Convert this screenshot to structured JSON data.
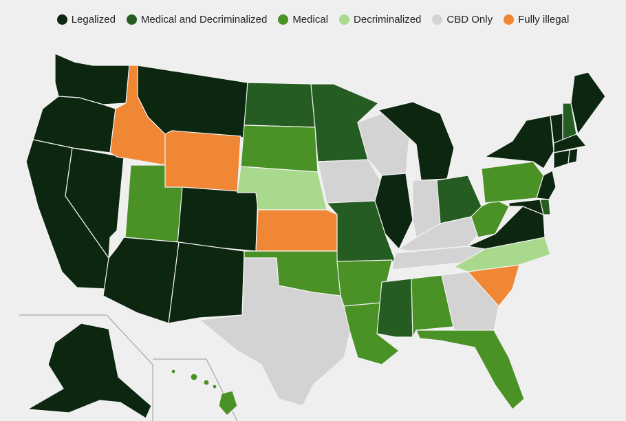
{
  "legend": [
    {
      "key": "legalized",
      "label": "Legalized",
      "color": "#0c2610"
    },
    {
      "key": "med_decrim",
      "label": "Medical and Decriminalized",
      "color": "#245c21"
    },
    {
      "key": "medical",
      "label": "Medical",
      "color": "#4a9126"
    },
    {
      "key": "decrim",
      "label": "Decriminalized",
      "color": "#a9d98c"
    },
    {
      "key": "cbd",
      "label": "CBD Only",
      "color": "#d3d3d3"
    },
    {
      "key": "illegal",
      "label": "Fully illegal",
      "color": "#f08735"
    }
  ],
  "states": {
    "WA": "legalized",
    "OR": "legalized",
    "CA": "legalized",
    "NV": "legalized",
    "ID": "illegal",
    "MT": "legalized",
    "WY": "illegal",
    "UT": "medical",
    "CO": "legalized",
    "AZ": "legalized",
    "NM": "legalized",
    "ND": "med_decrim",
    "SD": "medical",
    "NE": "decrim",
    "KS": "illegal",
    "OK": "medical",
    "TX": "cbd",
    "MN": "med_decrim",
    "IA": "cbd",
    "MO": "med_decrim",
    "AR": "medical",
    "LA": "medical",
    "WI": "cbd",
    "IL": "legalized",
    "MS": "med_decrim",
    "AL": "medical",
    "TN": "cbd",
    "KY": "cbd",
    "IN": "cbd",
    "MI": "legalized",
    "OH": "med_decrim",
    "GA": "cbd",
    "FL": "medical",
    "SC": "illegal",
    "NC": "decrim",
    "VA": "legalized",
    "WV": "medical",
    "PA": "medical",
    "NY": "legalized",
    "VT": "legalized",
    "NH": "med_decrim",
    "ME": "legalized",
    "MA": "legalized",
    "CT": "legalized",
    "RI": "legalized",
    "NJ": "legalized",
    "DE": "med_decrim",
    "MD": "legalized",
    "AK": "legalized",
    "HI": "medical"
  }
}
